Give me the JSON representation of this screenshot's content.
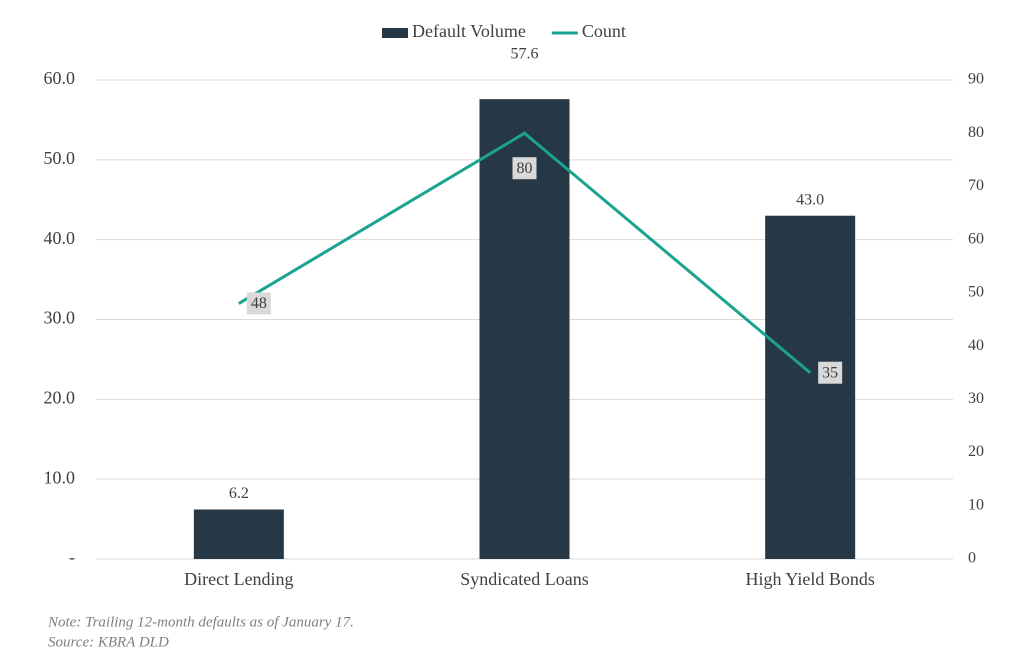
{
  "chart_data": {
    "type": "bar",
    "categories": [
      "Direct Lending",
      "Syndicated Loans",
      "High Yield Bonds"
    ],
    "series": [
      {
        "name": "Default Volume",
        "type": "bar",
        "color": "#263746",
        "values": [
          6.2,
          57.6,
          43.0
        ],
        "value_labels": [
          "6.2",
          "57.6",
          "43.0"
        ]
      },
      {
        "name": "Count",
        "type": "line",
        "axis": "y2",
        "color": "#1aa38e",
        "values": [
          48,
          80,
          35
        ]
      }
    ],
    "ylim": [
      0,
      60
    ],
    "yticks": [
      {
        "value": 0,
        "label": "-"
      },
      {
        "value": 10,
        "label": "10.0"
      },
      {
        "value": 20,
        "label": "20.0"
      },
      {
        "value": 30,
        "label": "30.0"
      },
      {
        "value": 40,
        "label": "40.0"
      },
      {
        "value": 50,
        "label": "50.0"
      },
      {
        "value": 60,
        "label": "60.0"
      }
    ],
    "y2lim": [
      0,
      90
    ],
    "y2ticks": [
      0,
      10,
      20,
      30,
      40,
      50,
      60,
      70,
      80,
      90
    ],
    "grid": true,
    "legend": "top",
    "notes": [
      "Note: Trailing 12-month defaults as of January 17.",
      "Source: KBRA DLD"
    ]
  }
}
